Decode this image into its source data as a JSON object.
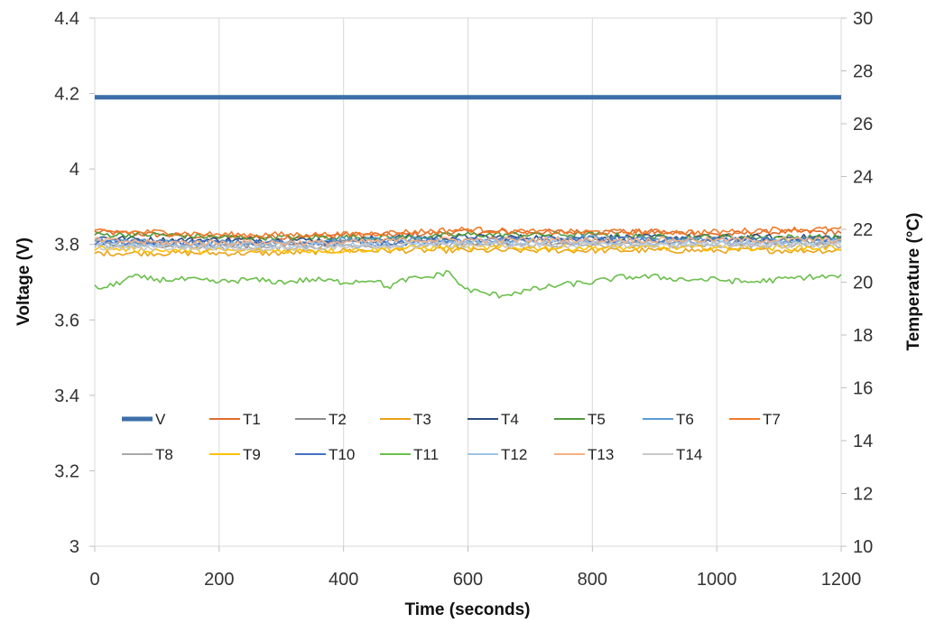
{
  "chart_data": {
    "type": "line",
    "title": "",
    "xlabel": "Time (seconds)",
    "ylabel_left": "Voltage (V)",
    "ylabel_right": "Temperature (°C)",
    "xlim": [
      0,
      1200
    ],
    "ylim_left": [
      3,
      4.4
    ],
    "ylim_right": [
      10,
      30
    ],
    "x_ticks": [
      0,
      200,
      400,
      600,
      800,
      1000,
      1200
    ],
    "x_tick_labels": [
      "0",
      "200",
      "400",
      "600",
      "800",
      "1000",
      "1200"
    ],
    "y_left_ticks": [
      3,
      3.2,
      3.4,
      3.6,
      3.8,
      4,
      4.2,
      4.4
    ],
    "y_left_tick_labels": [
      "3",
      "3.2",
      "3.4",
      "3.6",
      "3.8",
      "4",
      "4.2",
      "4.4"
    ],
    "y_right_ticks": [
      10,
      12,
      14,
      16,
      18,
      20,
      22,
      24,
      26,
      28,
      30
    ],
    "y_right_tick_labels": [
      "10",
      "12",
      "14",
      "16",
      "18",
      "20",
      "22",
      "24",
      "26",
      "28",
      "30"
    ],
    "grid": "vertical",
    "legend_position": "inside-lower",
    "series": [
      {
        "name": "V",
        "axis": "left",
        "color": "#3b6fa8",
        "width": 5,
        "x": [
          0,
          300,
          600,
          900,
          1200
        ],
        "values": [
          4.19,
          4.19,
          4.19,
          4.19,
          4.19
        ]
      },
      {
        "name": "T1",
        "axis": "right",
        "color": "#e06b2c",
        "width": 1.6,
        "x": [
          0,
          100,
          200,
          300,
          400,
          500,
          600,
          700,
          800,
          900,
          1000,
          1100,
          1200
        ],
        "values": [
          21.9,
          21.8,
          21.7,
          21.7,
          21.8,
          21.8,
          21.9,
          21.9,
          21.9,
          21.9,
          21.8,
          21.9,
          21.9
        ]
      },
      {
        "name": "T2",
        "axis": "right",
        "color": "#8c8c8c",
        "width": 1.6,
        "x": [
          0,
          100,
          200,
          300,
          400,
          500,
          600,
          700,
          800,
          900,
          1000,
          1100,
          1200
        ],
        "values": [
          21.5,
          21.4,
          21.4,
          21.4,
          21.5,
          21.5,
          21.5,
          21.5,
          21.5,
          21.5,
          21.5,
          21.5,
          21.5
        ]
      },
      {
        "name": "T3",
        "axis": "right",
        "color": "#e8a316",
        "width": 1.6,
        "x": [
          0,
          100,
          200,
          300,
          400,
          500,
          600,
          700,
          800,
          900,
          1000,
          1100,
          1200
        ],
        "values": [
          21.1,
          21.1,
          21.1,
          21.1,
          21.2,
          21.2,
          21.2,
          21.2,
          21.2,
          21.2,
          21.2,
          21.2,
          21.2
        ]
      },
      {
        "name": "T4",
        "axis": "right",
        "color": "#2b4c7e",
        "width": 1.6,
        "x": [
          0,
          100,
          200,
          300,
          400,
          500,
          600,
          700,
          800,
          900,
          1000,
          1100,
          1200
        ],
        "values": [
          21.7,
          21.6,
          21.6,
          21.6,
          21.6,
          21.7,
          21.7,
          21.7,
          21.7,
          21.7,
          21.7,
          21.7,
          21.7
        ]
      },
      {
        "name": "T5",
        "axis": "right",
        "color": "#4f9b3a",
        "width": 1.6,
        "x": [
          0,
          100,
          200,
          300,
          400,
          500,
          600,
          700,
          800,
          900,
          1000,
          1100,
          1200
        ],
        "values": [
          21.8,
          21.8,
          21.7,
          21.7,
          21.7,
          21.7,
          21.8,
          21.8,
          21.8,
          21.7,
          21.7,
          21.7,
          21.7
        ]
      },
      {
        "name": "T6",
        "axis": "right",
        "color": "#5b9bd5",
        "width": 1.6,
        "x": [
          0,
          100,
          200,
          300,
          400,
          500,
          600,
          700,
          800,
          900,
          1000,
          1100,
          1200
        ],
        "values": [
          21.6,
          21.5,
          21.5,
          21.5,
          21.6,
          21.6,
          21.6,
          21.6,
          21.7,
          21.6,
          21.6,
          21.6,
          21.6
        ]
      },
      {
        "name": "T7",
        "axis": "right",
        "color": "#f07a2a",
        "width": 1.6,
        "x": [
          0,
          100,
          200,
          300,
          400,
          500,
          600,
          700,
          800,
          900,
          1000,
          1100,
          1200
        ],
        "values": [
          21.9,
          21.9,
          21.8,
          21.8,
          21.8,
          21.9,
          22.0,
          21.9,
          21.9,
          21.9,
          21.9,
          22.0,
          22.0
        ]
      },
      {
        "name": "T8",
        "axis": "right",
        "color": "#a9a9a9",
        "width": 1.6,
        "x": [
          0,
          100,
          200,
          300,
          400,
          500,
          600,
          700,
          800,
          900,
          1000,
          1100,
          1200
        ],
        "values": [
          21.4,
          21.4,
          21.3,
          21.3,
          21.4,
          21.4,
          21.4,
          21.4,
          21.4,
          21.4,
          21.4,
          21.4,
          21.4
        ]
      },
      {
        "name": "T9",
        "axis": "right",
        "color": "#ffc000",
        "width": 1.6,
        "x": [
          0,
          100,
          200,
          300,
          400,
          500,
          600,
          700,
          800,
          900,
          1000,
          1100,
          1200
        ],
        "values": [
          21.3,
          21.2,
          21.2,
          21.2,
          21.2,
          21.3,
          21.3,
          21.3,
          21.3,
          21.3,
          21.3,
          21.3,
          21.3
        ]
      },
      {
        "name": "T10",
        "axis": "right",
        "color": "#4472c4",
        "width": 1.6,
        "x": [
          0,
          100,
          200,
          300,
          400,
          500,
          600,
          700,
          800,
          900,
          1000,
          1100,
          1200
        ],
        "values": [
          21.5,
          21.5,
          21.5,
          21.5,
          21.5,
          21.5,
          21.6,
          21.6,
          21.6,
          21.6,
          21.6,
          21.6,
          21.6
        ]
      },
      {
        "name": "T11",
        "axis": "right",
        "color": "#6abf4b",
        "width": 1.6,
        "x": [
          0,
          20,
          40,
          60,
          100,
          150,
          200,
          250,
          300,
          350,
          400,
          450,
          470,
          500,
          540,
          570,
          590,
          620,
          650,
          700,
          750,
          800,
          850,
          900,
          950,
          1000,
          1050,
          1100,
          1150,
          1200
        ],
        "values": [
          19.8,
          19.8,
          20.0,
          20.2,
          20.1,
          20.1,
          20.0,
          20.1,
          20.0,
          20.1,
          20.0,
          20.1,
          19.8,
          20.1,
          20.2,
          20.4,
          19.8,
          19.6,
          19.5,
          19.7,
          19.9,
          20.0,
          20.2,
          20.2,
          20.1,
          20.1,
          20.0,
          20.1,
          20.2,
          20.2
        ]
      },
      {
        "name": "T12",
        "axis": "right",
        "color": "#9dc3e6",
        "width": 1.6,
        "x": [
          0,
          100,
          200,
          300,
          400,
          500,
          600,
          700,
          800,
          900,
          1000,
          1100,
          1200
        ],
        "values": [
          21.4,
          21.4,
          21.4,
          21.4,
          21.4,
          21.4,
          21.5,
          21.5,
          21.5,
          21.5,
          21.5,
          21.5,
          21.5
        ]
      },
      {
        "name": "T13",
        "axis": "right",
        "color": "#f4b183",
        "width": 1.6,
        "x": [
          0,
          100,
          200,
          300,
          400,
          500,
          600,
          700,
          800,
          900,
          1000,
          1100,
          1200
        ],
        "values": [
          21.6,
          21.5,
          21.5,
          21.5,
          21.5,
          21.6,
          21.6,
          21.6,
          21.6,
          21.6,
          21.6,
          21.6,
          21.6
        ]
      },
      {
        "name": "T14",
        "axis": "right",
        "color": "#c9c9c9",
        "width": 1.6,
        "x": [
          0,
          100,
          200,
          300,
          400,
          500,
          600,
          700,
          800,
          900,
          1000,
          1100,
          1200
        ],
        "values": [
          21.3,
          21.3,
          21.3,
          21.3,
          21.3,
          21.4,
          21.4,
          21.4,
          21.4,
          21.4,
          21.4,
          21.4,
          21.4
        ]
      }
    ]
  }
}
